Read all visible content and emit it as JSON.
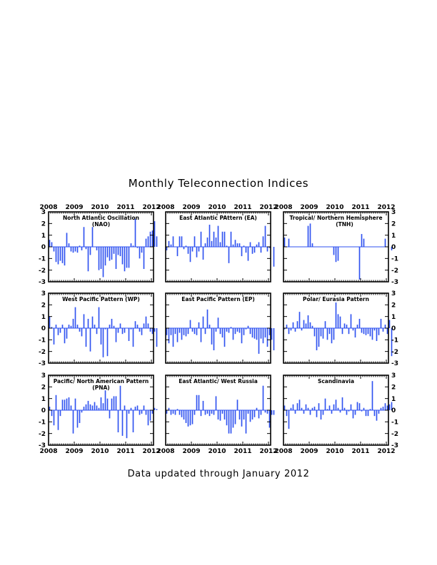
{
  "page": {
    "title": "Monthly Teleconnection Indices",
    "footer": "Data updated through January 2012"
  },
  "colors": {
    "bar": "#2f52f0",
    "axis": "#000000",
    "background": "#ffffff"
  },
  "chart_data": [
    {
      "type": "bar",
      "title": "North Atlantic Oscillation (NAO)",
      "x_start": "2008-01",
      "x_ticks": [
        "2008",
        "2009",
        "2010",
        "2011",
        "2012"
      ],
      "y_ticks": [
        "3",
        "2",
        "1",
        "0",
        "-1",
        "-2",
        "-3"
      ],
      "ylim": [
        -3,
        3
      ],
      "values": [
        0.6,
        0.4,
        -0.4,
        -1.3,
        -1.5,
        -1.2,
        -1.4,
        -1.6,
        1.2,
        0.3,
        -0.4,
        -0.5,
        -0.4,
        -0.5,
        0.1,
        -0.3,
        1.7,
        -0.2,
        -2.1,
        -0.7,
        1.7,
        0.0,
        -0.3,
        -2.0,
        -1.9,
        -2.6,
        -1.6,
        -0.9,
        -1.2,
        -1.1,
        -0.6,
        -1.9,
        -0.7,
        -0.8,
        -1.5,
        -2.1,
        -1.8,
        -1.8,
        0.3,
        0.1,
        2.4,
        -0.1,
        -1.0,
        -0.5,
        -1.9,
        0.7,
        0.9,
        1.3,
        1.4,
        2.2,
        0.9
      ]
    },
    {
      "type": "bar",
      "title": "East Atlantic PAttern (EA)",
      "x_start": "2008-01",
      "x_ticks": [
        "2008",
        "2009",
        "2010",
        "2011",
        "2012"
      ],
      "y_ticks": [
        "3",
        "2",
        "1",
        "0",
        "-1",
        "-2",
        "-3"
      ],
      "ylim": [
        -3,
        3
      ],
      "values": [
        -0.3,
        0.5,
        0.2,
        0.9,
        0.0,
        -0.8,
        0.9,
        0.9,
        -0.2,
        0.1,
        -0.6,
        -1.3,
        -0.4,
        0.9,
        -0.9,
        -0.4,
        1.3,
        -1.1,
        0.3,
        0.8,
        1.9,
        0.5,
        1.3,
        0.8,
        1.8,
        0.4,
        1.3,
        1.3,
        0.1,
        -1.4,
        1.3,
        0.2,
        0.6,
        0.3,
        0.3,
        -0.8,
        0.1,
        -0.5,
        -1.2,
        0.4,
        -0.6,
        -0.5,
        0.2,
        0.4,
        -0.5,
        0.9,
        1.8,
        -0.4,
        -0.1,
        0.0,
        -1.7
      ]
    },
    {
      "type": "bar",
      "title": "Tropical/ Northern Hemisphere (TNH)",
      "x_start": "2008-01",
      "x_ticks": [
        "2008",
        "2009",
        "2010",
        "2011",
        "2012"
      ],
      "y_ticks": [
        "3",
        "2",
        "1",
        "0",
        "-1",
        "-2",
        "-3"
      ],
      "ylim": [
        -3,
        3
      ],
      "values": [
        0.8,
        0.0,
        0.7,
        0,
        0,
        0,
        0,
        0,
        0,
        0,
        0,
        1.8,
        2.0,
        0.3,
        0,
        0,
        0,
        0,
        0,
        0,
        0,
        0,
        0,
        -0.7,
        -1.3,
        -1.2,
        0,
        0,
        0,
        0,
        0,
        0,
        0,
        0,
        0,
        -2.8,
        1.1,
        0.7,
        0,
        0,
        0,
        0,
        0,
        0,
        0,
        0,
        0,
        0.7,
        0.0,
        0,
        -0.3
      ]
    },
    {
      "type": "bar",
      "title": "West Pacific Pattern (WP)",
      "x_start": "2008-01",
      "x_ticks": [
        "2008",
        "2009",
        "2010",
        "2011",
        "2012"
      ],
      "y_ticks": [
        "3",
        "2",
        "1",
        "0",
        "-1",
        "-2",
        "-3"
      ],
      "ylim": [
        -3,
        3
      ],
      "values": [
        1.0,
        0.1,
        -1.4,
        0.3,
        -0.6,
        -0.4,
        0.3,
        -1.3,
        -0.9,
        0.3,
        0.2,
        0.8,
        1.8,
        0.3,
        -0.3,
        -0.7,
        1.2,
        -1.6,
        0.8,
        -2.0,
        1.0,
        0.3,
        -0.5,
        1.8,
        -1.4,
        -2.5,
        -0.1,
        -2.4,
        0.3,
        0.8,
        0.2,
        -1.2,
        -0.4,
        0.4,
        -0.5,
        -0.4,
        0.0,
        -1.1,
        -0.1,
        -1.6,
        0.6,
        0.3,
        -0.3,
        -0.6,
        0.4,
        1.0,
        0.4,
        -0.3,
        -0.5,
        -0.3,
        -1.6
      ]
    },
    {
      "type": "bar",
      "title": "East Pacific Pattern (EP)",
      "x_start": "2008-01",
      "x_ticks": [
        "2008",
        "2009",
        "2010",
        "2011",
        "2012"
      ],
      "y_ticks": [
        "3",
        "2",
        "1",
        "0",
        "-1",
        "-2",
        "-3"
      ],
      "ylim": [
        -3,
        3
      ],
      "values": [
        -0.6,
        -1.3,
        -0.6,
        -1.6,
        -0.5,
        -1.2,
        -0.4,
        -1.0,
        -0.6,
        -0.7,
        -0.5,
        0.7,
        -0.3,
        -0.5,
        -0.6,
        0.5,
        -1.2,
        1.0,
        -0.5,
        1.6,
        0.3,
        -1.4,
        -1.9,
        -0.3,
        0.9,
        -0.5,
        -0.8,
        -1.6,
        -0.3,
        -0.4,
        0.1,
        -1.0,
        -0.5,
        -0.3,
        -0.4,
        -1.3,
        -0.6,
        -0.1,
        0.2,
        -0.5,
        -0.8,
        -0.9,
        -1.0,
        -2.2,
        -0.9,
        -1.3,
        -0.8,
        -1.6,
        -0.6,
        -1.0,
        -1.9
      ]
    },
    {
      "type": "bar",
      "title": "Polar/ Eurasia Pattern",
      "x_start": "2008-01",
      "x_ticks": [
        "2008",
        "2009",
        "2010",
        "2011",
        "2012"
      ],
      "y_ticks": [
        "3",
        "2",
        "1",
        "0",
        "-1",
        "-2",
        "-3"
      ],
      "ylim": [
        -3,
        3
      ],
      "values": [
        -0.1,
        0.3,
        -0.5,
        -0.2,
        0.5,
        -0.3,
        0.6,
        1.4,
        -0.2,
        0.7,
        0.4,
        1.1,
        0.5,
        0.2,
        -0.7,
        -1.9,
        -1.6,
        -0.7,
        -0.9,
        0.6,
        -1.0,
        -0.5,
        -1.3,
        -1.0,
        2.2,
        1.2,
        1.0,
        -0.5,
        0.4,
        0.3,
        -0.5,
        1.2,
        -0.2,
        -0.8,
        0.3,
        0.8,
        -0.4,
        -0.5,
        -0.6,
        -0.5,
        -0.7,
        -1.0,
        -0.2,
        -1.1,
        -0.6,
        0.8,
        -0.3,
        0.3,
        -0.5,
        0.7,
        -2.4
      ]
    },
    {
      "type": "bar",
      "title": "Pacific/ North American Pattern (PNA)",
      "x_start": "2008-01",
      "x_ticks": [
        "2008",
        "2009",
        "2010",
        "2011",
        "2012"
      ],
      "y_ticks": [
        "3",
        "2",
        "1",
        "0",
        "-1",
        "-2",
        "-3"
      ],
      "ylim": [
        -3,
        3
      ],
      "values": [
        0.3,
        -0.5,
        -1.3,
        1.3,
        -1.7,
        -0.5,
        0.9,
        0.9,
        1.0,
        1.1,
        0.4,
        -2.0,
        1.0,
        -1.5,
        -1.1,
        -0.2,
        0.3,
        0.5,
        0.8,
        0.5,
        0.4,
        0.7,
        0.4,
        0.2,
        1.1,
        0.6,
        1.7,
        1.0,
        -0.7,
        1.0,
        1.2,
        1.2,
        -1.9,
        2.1,
        -2.2,
        0.4,
        -2.4,
        -0.3,
        0.2,
        -1.9,
        0.3,
        0.4,
        -0.4,
        -0.3,
        0.4,
        -0.4,
        -1.3,
        -0.9,
        -0.3,
        0.2,
        0.1
      ]
    },
    {
      "type": "bar",
      "title": "East Atlantic/ West Russia",
      "x_start": "2008-01",
      "x_ticks": [
        "2008",
        "2009",
        "2010",
        "2011",
        "2012"
      ],
      "y_ticks": [
        "3",
        "2",
        "1",
        "0",
        "-1",
        "-2",
        "-3"
      ],
      "ylim": [
        -3,
        3
      ],
      "values": [
        -0.3,
        0.2,
        -0.4,
        -0.3,
        -0.4,
        0.1,
        -0.4,
        -0.6,
        -0.8,
        -1.1,
        -1.4,
        -1.3,
        -1.2,
        -0.4,
        1.3,
        1.3,
        -0.5,
        0.8,
        -0.4,
        -0.3,
        -0.5,
        -0.3,
        -0.4,
        1.2,
        -0.8,
        -0.9,
        -0.3,
        -0.8,
        -1.3,
        -2.0,
        -2.0,
        -1.5,
        -1.2,
        0.9,
        -0.8,
        -1.4,
        -0.8,
        -2.0,
        -0.3,
        -1.0,
        -0.8,
        -0.6,
        0.2,
        -0.7,
        -0.4,
        2.1,
        -0.2,
        -0.3,
        -1.5,
        -0.4,
        -0.4
      ]
    },
    {
      "type": "bar",
      "title": "Scandinavia",
      "x_start": "2008-01",
      "x_ticks": [
        "2008",
        "2009",
        "2010",
        "2011",
        "2012"
      ],
      "y_ticks": [
        "3",
        "2",
        "1",
        "0",
        "-1",
        "-2",
        "-3"
      ],
      "ylim": [
        -3,
        3
      ],
      "values": [
        0.4,
        -0.5,
        -1.6,
        0.2,
        0.5,
        -0.3,
        0.6,
        0.9,
        0.2,
        -0.3,
        0.5,
        0.2,
        -0.4,
        0.2,
        0.3,
        -0.6,
        0.6,
        -0.8,
        -0.4,
        1.0,
        0.1,
        0.4,
        -0.3,
        0.5,
        0.9,
        0.2,
        -0.2,
        1.1,
        0.2,
        -0.4,
        -0.1,
        0.5,
        -0.7,
        -0.4,
        0.7,
        0.6,
        -0.1,
        0.2,
        -0.5,
        -0.5,
        0.1,
        2.5,
        -0.5,
        -0.9,
        -0.3,
        0.2,
        0.3,
        0.6,
        0.4,
        0.5,
        0.7
      ]
    }
  ]
}
